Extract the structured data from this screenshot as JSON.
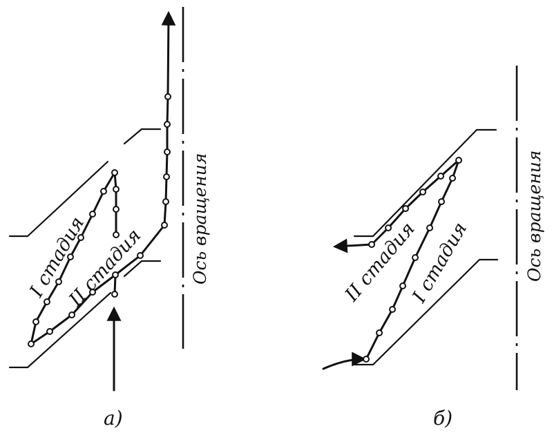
{
  "figure_a": {
    "caption": "а)",
    "stage_1_label": "I стадия",
    "stage_2_label": "II стадия",
    "axis_label": "Ось вращения"
  },
  "figure_b": {
    "caption": "б)",
    "stage_1_label": "I стадия",
    "stage_2_label": "II стадия",
    "axis_label": "Ось вращения"
  }
}
